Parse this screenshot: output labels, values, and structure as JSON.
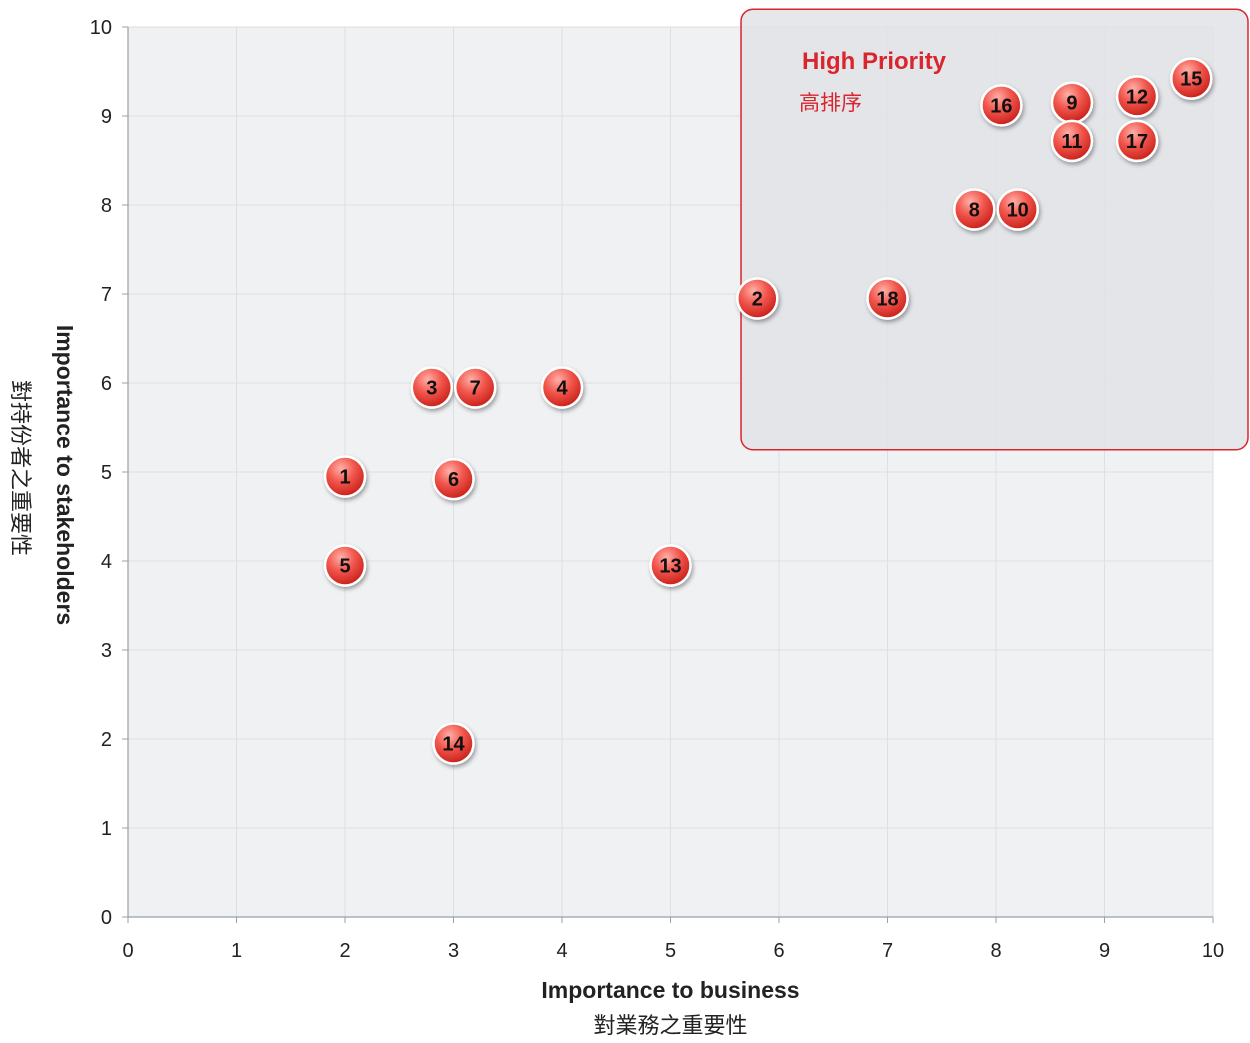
{
  "chart_data": {
    "type": "scatter",
    "title": "",
    "xlabel": "Importance to business",
    "xlabel_zh": "對業務之重要性",
    "ylabel": "Importance to stakeholders",
    "ylabel_zh": "對持份者之重要性",
    "xlim": [
      0,
      10
    ],
    "ylim": [
      0,
      10
    ],
    "xticks": [
      "0",
      "1",
      "2",
      "3",
      "4",
      "5",
      "6",
      "7",
      "8",
      "9",
      "10"
    ],
    "yticks": [
      "0",
      "1",
      "2",
      "3",
      "4",
      "5",
      "6",
      "7",
      "8",
      "9",
      "10"
    ],
    "grid": true,
    "region": {
      "title": "High Priority",
      "subtitle": "高排序",
      "x_range": [
        5.65,
        10.35
      ],
      "y_range": [
        5.25,
        10.2
      ]
    },
    "points": [
      {
        "label": "1",
        "x": 2.0,
        "y": 4.95
      },
      {
        "label": "2",
        "x": 5.8,
        "y": 6.95
      },
      {
        "label": "3",
        "x": 2.8,
        "y": 5.95
      },
      {
        "label": "4",
        "x": 4.0,
        "y": 5.95
      },
      {
        "label": "5",
        "x": 2.0,
        "y": 3.95
      },
      {
        "label": "6",
        "x": 3.0,
        "y": 4.92
      },
      {
        "label": "7",
        "x": 3.2,
        "y": 5.95
      },
      {
        "label": "8",
        "x": 7.8,
        "y": 7.95
      },
      {
        "label": "9",
        "x": 8.7,
        "y": 9.15
      },
      {
        "label": "10",
        "x": 8.2,
        "y": 7.95
      },
      {
        "label": "11",
        "x": 8.7,
        "y": 8.72
      },
      {
        "label": "12",
        "x": 9.3,
        "y": 9.22
      },
      {
        "label": "13",
        "x": 5.0,
        "y": 3.95
      },
      {
        "label": "14",
        "x": 3.0,
        "y": 1.95
      },
      {
        "label": "15",
        "x": 9.8,
        "y": 9.42
      },
      {
        "label": "16",
        "x": 8.05,
        "y": 9.12
      },
      {
        "label": "17",
        "x": 9.3,
        "y": 8.72
      },
      {
        "label": "18",
        "x": 7.0,
        "y": 6.95
      }
    ]
  },
  "colors": {
    "plot_background": "#f0f1f3",
    "gridline": "#dcdfe3",
    "axis_line": "#9aa0a6",
    "region_fill": "#e2e3e6",
    "region_border": "#d9262e",
    "region_text": "#d9262e",
    "point_light": "#ffb0a8",
    "point_mid": "#f2574e",
    "point_dark": "#c41a14",
    "point_border": "#ffffff"
  }
}
